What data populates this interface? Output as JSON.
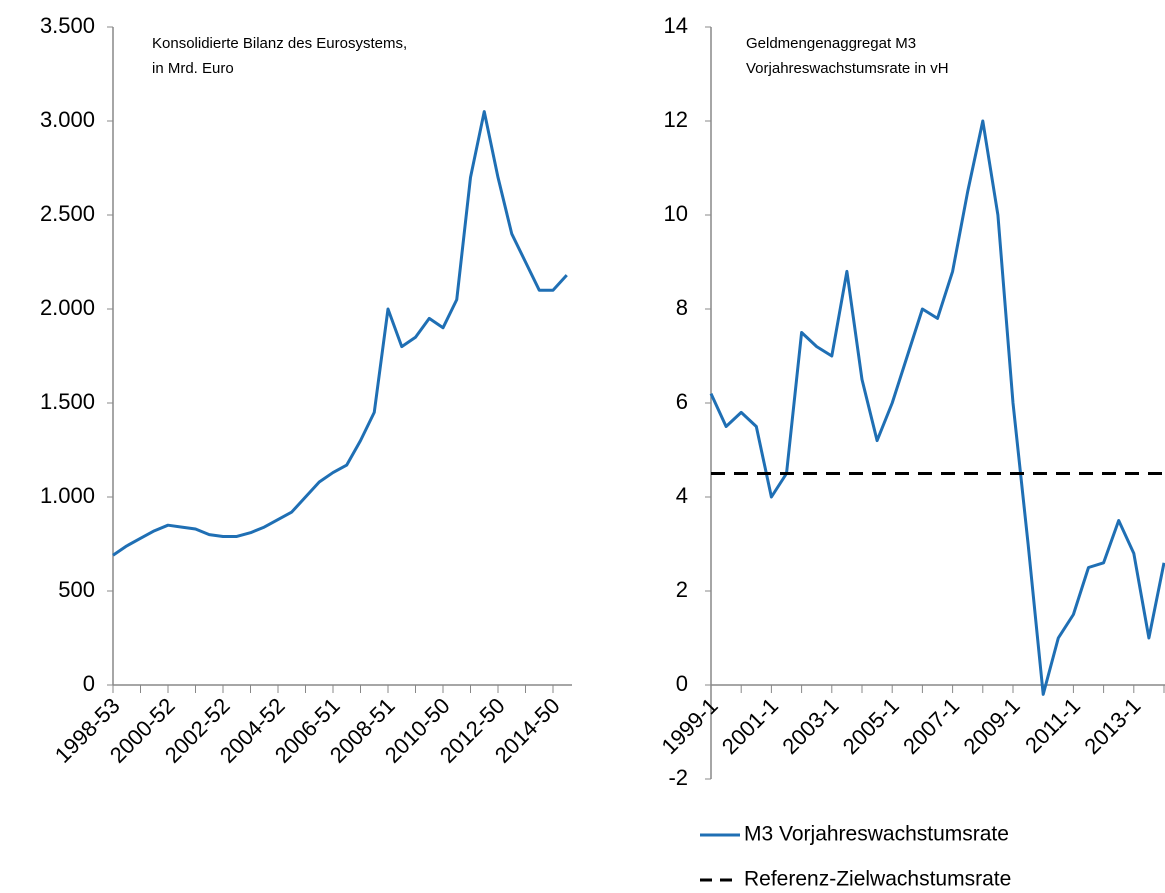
{
  "chart_data": [
    {
      "type": "line",
      "title": [
        "Konsolidierte Bilanz des Eurosystems,",
        "in Mrd. Euro"
      ],
      "categories": [
        "1998-53",
        null,
        null,
        null,
        "2000-52",
        null,
        null,
        null,
        "2002-52",
        null,
        null,
        null,
        "2004-52",
        null,
        null,
        null,
        "2006-51",
        null,
        null,
        null,
        "2008-51",
        null,
        null,
        null,
        "2010-50",
        null,
        null,
        null,
        "2012-50",
        null,
        null,
        null,
        "2014-50",
        null
      ],
      "series": [
        {
          "name": "Konsolidierte Bilanz des Eurosystems",
          "color": "#1f6fb4",
          "values": [
            690,
            740,
            780,
            820,
            850,
            840,
            830,
            800,
            790,
            790,
            810,
            840,
            880,
            920,
            1000,
            1080,
            1130,
            1170,
            1300,
            1450,
            2000,
            1800,
            1850,
            1950,
            1900,
            2050,
            2700,
            3050,
            2700,
            2400,
            2250,
            2100,
            2100,
            2180
          ]
        }
      ],
      "ylim": [
        0,
        3500
      ],
      "yticks": [
        0,
        500,
        {
          "value": 1000,
          "label": "1.000"
        },
        {
          "value": 1500,
          "label": "1.500"
        },
        {
          "value": 2000,
          "label": "2.000"
        },
        {
          "value": 2500,
          "label": "2.500"
        },
        {
          "value": 3000,
          "label": "3.000"
        },
        {
          "value": 3500,
          "label": "3.500"
        }
      ]
    },
    {
      "type": "line",
      "title": [
        "Geldmengenaggregat M3",
        "Vorjahreswachstumsrate in vH"
      ],
      "categories": [
        "1999-1",
        null,
        null,
        null,
        "2001-1",
        null,
        null,
        null,
        "2003-1",
        null,
        null,
        null,
        "2005-1",
        null,
        null,
        null,
        "2007-1",
        null,
        null,
        null,
        "2009-1",
        null,
        null,
        null,
        "2011-1",
        null,
        null,
        null,
        "2013-1",
        null,
        null
      ],
      "series": [
        {
          "name": "M3 Vorjahreswachstumsrate",
          "color": "#1f6fb4",
          "values": [
            6.2,
            5.5,
            5.8,
            5.5,
            4.0,
            4.5,
            7.5,
            7.2,
            7.0,
            8.8,
            6.5,
            5.2,
            6.0,
            7.0,
            8.0,
            7.8,
            8.8,
            10.5,
            12.0,
            10.0,
            6.0,
            3.0,
            -0.2,
            1.0,
            1.5,
            2.5,
            2.6,
            3.5,
            2.8,
            1.0,
            2.6
          ]
        },
        {
          "name": "Referenz-Zielwachstumsrate",
          "color": "#000000",
          "dashed": true,
          "values": [
            4.5,
            4.5,
            4.5,
            4.5,
            4.5,
            4.5,
            4.5,
            4.5,
            4.5,
            4.5,
            4.5,
            4.5,
            4.5,
            4.5,
            4.5,
            4.5,
            4.5,
            4.5,
            4.5,
            4.5,
            4.5,
            4.5,
            4.5,
            4.5,
            4.5,
            4.5,
            4.5,
            4.5,
            4.5,
            4.5,
            4.5
          ]
        }
      ],
      "ylim": [
        -2,
        14
      ],
      "yticks": [
        -2,
        0,
        2,
        4,
        6,
        8,
        10,
        12,
        14
      ],
      "legend": "bottom-right"
    }
  ]
}
